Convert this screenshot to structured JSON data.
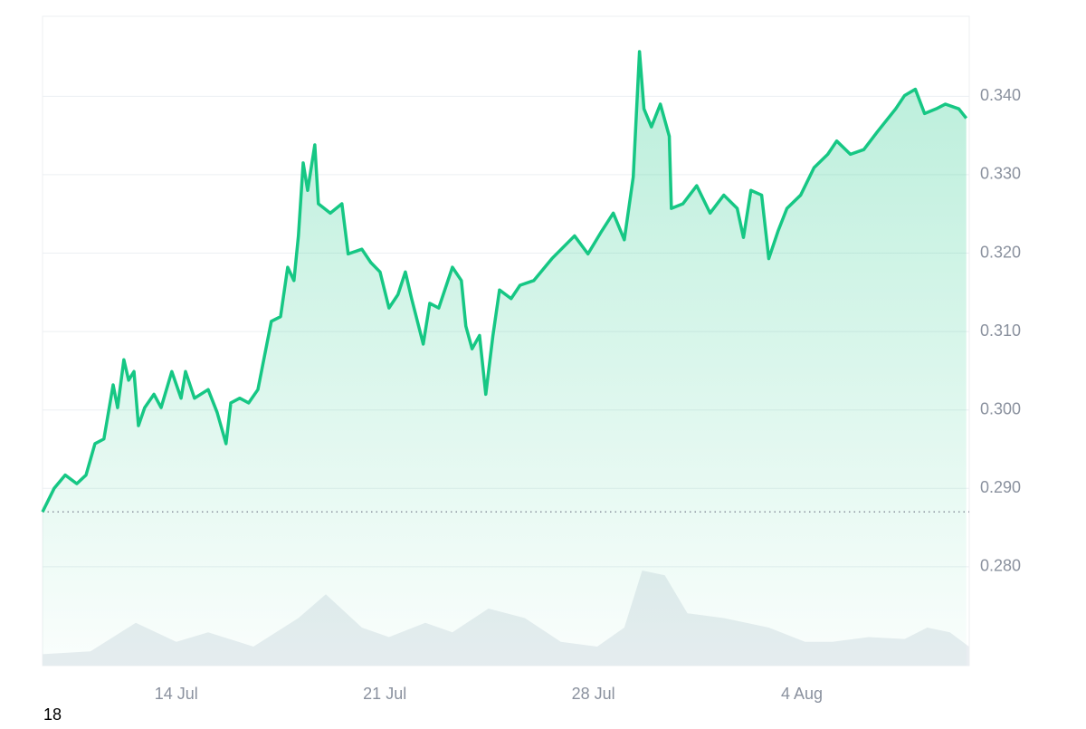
{
  "chart_data": {
    "type": "line",
    "x": [
      9.51,
      9.9,
      10.27,
      10.66,
      10.97,
      11.27,
      11.57,
      11.88,
      12.03,
      12.24,
      12.4,
      12.58,
      12.73,
      12.94,
      13.25,
      13.49,
      13.85,
      14.16,
      14.31,
      14.61,
      15.07,
      15.37,
      15.67,
      15.83,
      16.13,
      16.43,
      16.74,
      16.89,
      17.19,
      17.5,
      17.74,
      17.95,
      18.1,
      18.26,
      18.41,
      18.65,
      18.77,
      19.17,
      19.56,
      19.77,
      20.23,
      20.53,
      20.84,
      21.14,
      21.44,
      21.69,
      21.9,
      22.29,
      22.51,
      22.81,
      23.27,
      23.57,
      23.72,
      23.93,
      24.18,
      24.39,
      24.63,
      24.85,
      25.24,
      25.54,
      26.0,
      26.61,
      27.37,
      27.82,
      28.28,
      28.67,
      29.04,
      29.34,
      29.55,
      29.7,
      29.95,
      30.25,
      30.55,
      30.62,
      31.01,
      31.47,
      31.92,
      32.38,
      32.83,
      33.04,
      33.29,
      33.65,
      33.89,
      34.2,
      34.5,
      34.96,
      35.41,
      35.87,
      36.17,
      36.63,
      37.08,
      37.54,
      38.15,
      38.45,
      38.81,
      39.12,
      39.51,
      39.82,
      40.27,
      40.52
    ],
    "series": [
      {
        "color": "#16c784",
        "values": [
          0.287,
          0.29,
          0.2917,
          0.2906,
          0.2917,
          0.2957,
          0.2963,
          0.3032,
          0.3003,
          0.3064,
          0.3038,
          0.3049,
          0.298,
          0.3003,
          0.302,
          0.3003,
          0.3049,
          0.3015,
          0.3049,
          0.3015,
          0.3026,
          0.2997,
          0.2957,
          0.3009,
          0.3015,
          0.3009,
          0.3026,
          0.3055,
          0.3113,
          0.3119,
          0.3182,
          0.3165,
          0.3222,
          0.3315,
          0.328,
          0.3338,
          0.3263,
          0.3251,
          0.3263,
          0.3199,
          0.3205,
          0.3188,
          0.3176,
          0.313,
          0.3147,
          0.3176,
          0.3142,
          0.3084,
          0.3136,
          0.313,
          0.3182,
          0.3165,
          0.3107,
          0.3078,
          0.3095,
          0.302,
          0.3095,
          0.3153,
          0.3142,
          0.3159,
          0.3165,
          0.3193,
          0.3222,
          0.3199,
          0.3228,
          0.3251,
          0.3217,
          0.3297,
          0.3457,
          0.3384,
          0.3361,
          0.339,
          0.3349,
          0.3257,
          0.3263,
          0.3286,
          0.3251,
          0.3274,
          0.3257,
          0.322,
          0.328,
          0.3274,
          0.3193,
          0.3228,
          0.3257,
          0.3274,
          0.3309,
          0.3326,
          0.3343,
          0.3326,
          0.3332,
          0.3355,
          0.3384,
          0.3401,
          0.3409,
          0.3378,
          0.3384,
          0.339,
          0.3384,
          0.3372
        ]
      }
    ],
    "xlim": [
      9.51,
      40.62
    ],
    "ylim": [
      0.2674,
      0.3502
    ],
    "xticks": [
      {
        "value": 14,
        "label": "14 Jul"
      },
      {
        "value": 21,
        "label": "21 Jul"
      },
      {
        "value": 28,
        "label": "28 Jul"
      },
      {
        "value": 35,
        "label": "4 Aug"
      }
    ],
    "yticks": [
      {
        "value": 0.28,
        "label": "0.280"
      },
      {
        "value": 0.29,
        "label": "0.290"
      },
      {
        "value": 0.3,
        "label": "0.300"
      },
      {
        "value": 0.31,
        "label": "0.310"
      },
      {
        "value": 0.32,
        "label": "0.320"
      },
      {
        "value": 0.33,
        "label": "0.330"
      },
      {
        "value": 0.34,
        "label": "0.340"
      }
    ],
    "grid": true,
    "volume": {
      "color": "#e9edf1",
      "ylim": [
        0,
        100
      ],
      "x": [
        9.51,
        11.12,
        12.64,
        14.0,
        15.07,
        16.59,
        18.1,
        19.02,
        20.23,
        21.14,
        22.36,
        23.27,
        24.48,
        25.7,
        26.91,
        28.13,
        29.04,
        29.64,
        30.4,
        31.16,
        32.38,
        33.89,
        35.11,
        36.02,
        37.24,
        38.45,
        39.21,
        39.97,
        40.61
      ],
      "values": [
        12,
        15,
        45,
        25,
        35,
        20,
        50,
        75,
        40,
        30,
        45,
        35,
        60,
        50,
        25,
        20,
        40,
        100,
        95,
        55,
        50,
        40,
        25,
        25,
        30,
        28,
        40,
        35,
        20
      ]
    }
  },
  "footer_label": "18"
}
